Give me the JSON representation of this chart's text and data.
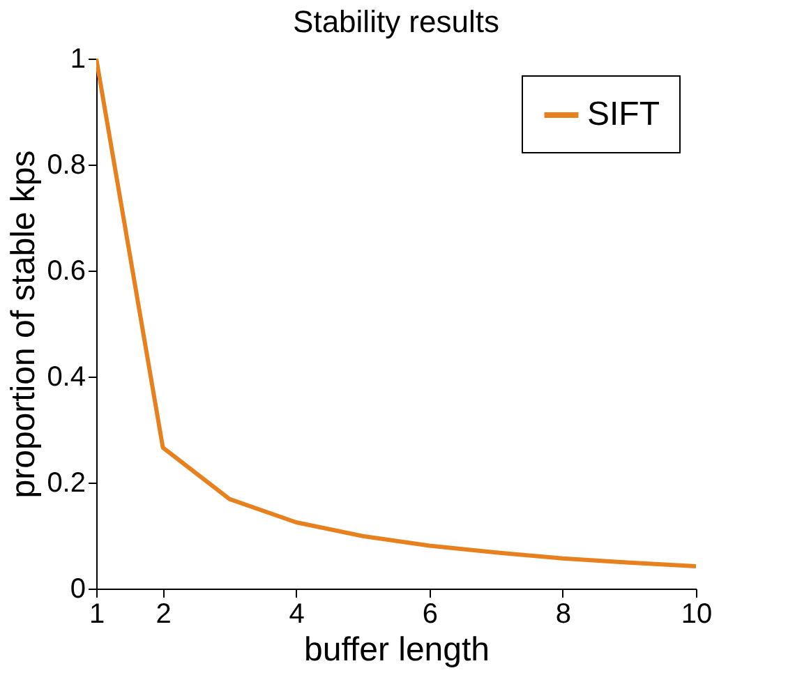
{
  "chart_data": {
    "type": "line",
    "title": "Stability results",
    "xlabel": "buffer length",
    "ylabel": "proportion of stable kps",
    "x": [
      1,
      2,
      3,
      4,
      5,
      6,
      7,
      8,
      9,
      10
    ],
    "series": [
      {
        "name": "SIFT",
        "color": "#e8801e",
        "values": [
          1.0,
          0.266,
          0.169,
          0.125,
          0.099,
          0.081,
          0.068,
          0.057,
          0.049,
          0.042
        ]
      }
    ],
    "xlim": [
      1,
      10
    ],
    "xticks": [
      1,
      2,
      4,
      6,
      8,
      10
    ],
    "ylim": [
      0,
      1
    ],
    "yticks": [
      0,
      0.2,
      0.4,
      0.6,
      0.8,
      1
    ],
    "grid": false,
    "legend": "top right",
    "marker": "none",
    "line_style": "solid"
  }
}
